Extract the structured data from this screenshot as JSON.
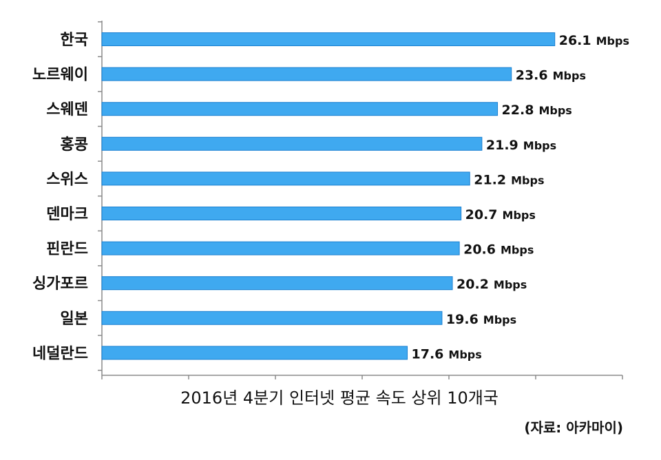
{
  "chart_data": {
    "type": "bar",
    "orientation": "horizontal",
    "title": "2016년 4분기 인터넷 평균 속도 상위 10개국",
    "source": "(자료: 아카마이)",
    "unit": "Mbps",
    "categories": [
      "한국",
      "노르웨이",
      "스웨덴",
      "홍콩",
      "스위스",
      "덴마크",
      "핀란드",
      "싱가포르",
      "일본",
      "네덜란드"
    ],
    "values": [
      26.1,
      23.6,
      22.8,
      21.9,
      21.2,
      20.7,
      20.6,
      20.2,
      19.6,
      17.6
    ],
    "value_labels": [
      "26.1",
      "23.6",
      "22.8",
      "21.9",
      "21.2",
      "20.7",
      "20.6",
      "20.2",
      "19.6",
      "17.6"
    ],
    "xlim": [
      0,
      30
    ],
    "bar_color": "#3fa9f0",
    "bar_edge_color": "#1a7fd0",
    "grid": false,
    "legend": "none"
  }
}
